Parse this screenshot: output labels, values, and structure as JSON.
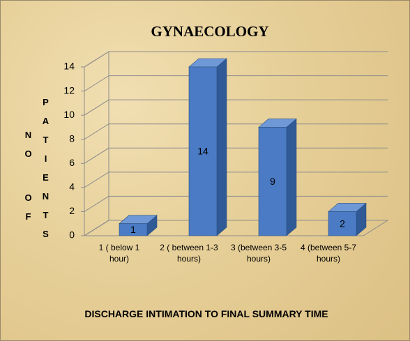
{
  "chart_data": {
    "type": "bar3d",
    "title": "GYNAECOLOGY",
    "categories": [
      "1 ( below 1 hour)",
      "2 ( between 1-3 hours)",
      "3 (between 3-5 hours)",
      "4 (between 5-7 hours)"
    ],
    "values": [
      1,
      14,
      9,
      2
    ],
    "color": "#4a7bc4",
    "ylim": [
      0,
      14
    ],
    "yticks": [
      0,
      2,
      4,
      6,
      8,
      10,
      12,
      14
    ],
    "grid": true,
    "x_label": "DISCHARGE INTIMATION TO FINAL SUMMARY TIME",
    "y_label": [
      "NO",
      "OF",
      "PATIENTS"
    ]
  }
}
